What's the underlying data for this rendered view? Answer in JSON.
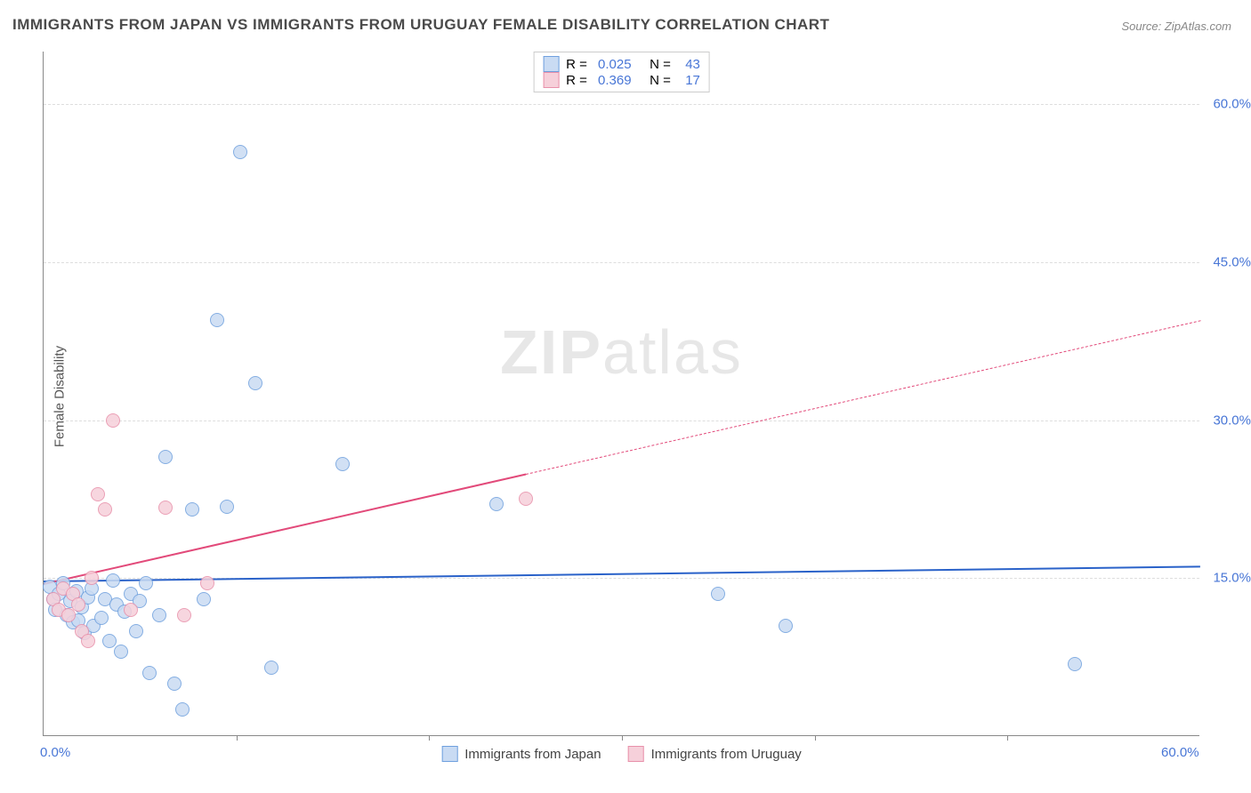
{
  "title": "IMMIGRANTS FROM JAPAN VS IMMIGRANTS FROM URUGUAY FEMALE DISABILITY CORRELATION CHART",
  "source": "Source: ZipAtlas.com",
  "ylabel": "Female Disability",
  "watermark": {
    "bold": "ZIP",
    "rest": "atlas"
  },
  "chart": {
    "type": "scatter",
    "xlim": [
      0,
      60
    ],
    "ylim": [
      0,
      65
    ],
    "x_tick_marks": [
      10,
      20,
      30,
      40,
      50
    ],
    "x_axis_labels": [
      {
        "v": 0,
        "t": "0.0%"
      },
      {
        "v": 60,
        "t": "60.0%"
      }
    ],
    "y_gridlines": [
      {
        "v": 15,
        "t": "15.0%"
      },
      {
        "v": 30,
        "t": "30.0%"
      },
      {
        "v": 45,
        "t": "45.0%"
      },
      {
        "v": 60,
        "t": "60.0%"
      }
    ],
    "background_color": "#ffffff",
    "grid_color": "#dddddd",
    "axis_color": "#888888",
    "marker_radius": 8,
    "marker_stroke_width": 1.2,
    "series": [
      {
        "name": "Immigrants from Japan",
        "fill_color": "#c9dbf3",
        "stroke_color": "#6fa0de",
        "trend_color": "#2a62c9",
        "R": "0.025",
        "N": "43",
        "trend": {
          "x1": 0,
          "y1": 14.8,
          "x2": 60,
          "y2": 16.2,
          "solid_until_x": 60
        },
        "points": [
          [
            0.3,
            14.2
          ],
          [
            0.5,
            13.0
          ],
          [
            0.6,
            12.0
          ],
          [
            0.8,
            13.5
          ],
          [
            1.0,
            14.5
          ],
          [
            1.2,
            11.5
          ],
          [
            1.4,
            12.8
          ],
          [
            1.5,
            10.8
          ],
          [
            1.7,
            13.8
          ],
          [
            1.8,
            11.0
          ],
          [
            2.0,
            12.2
          ],
          [
            2.1,
            9.8
          ],
          [
            2.3,
            13.2
          ],
          [
            2.5,
            14.0
          ],
          [
            2.6,
            10.5
          ],
          [
            3.0,
            11.2
          ],
          [
            3.2,
            13.0
          ],
          [
            3.4,
            9.0
          ],
          [
            3.6,
            14.8
          ],
          [
            3.8,
            12.5
          ],
          [
            4.0,
            8.0
          ],
          [
            4.2,
            11.8
          ],
          [
            4.5,
            13.5
          ],
          [
            4.8,
            10.0
          ],
          [
            5.0,
            12.8
          ],
          [
            5.3,
            14.5
          ],
          [
            5.5,
            6.0
          ],
          [
            6.0,
            11.5
          ],
          [
            6.3,
            26.5
          ],
          [
            6.8,
            5.0
          ],
          [
            7.2,
            2.5
          ],
          [
            7.7,
            21.5
          ],
          [
            8.3,
            13.0
          ],
          [
            9.0,
            39.5
          ],
          [
            9.5,
            21.8
          ],
          [
            10.2,
            55.5
          ],
          [
            11.0,
            33.5
          ],
          [
            11.8,
            6.5
          ],
          [
            15.5,
            25.8
          ],
          [
            23.5,
            22.0
          ],
          [
            35.0,
            13.5
          ],
          [
            38.5,
            10.5
          ],
          [
            53.5,
            6.8
          ]
        ]
      },
      {
        "name": "Immigrants from Uruguay",
        "fill_color": "#f6d0da",
        "stroke_color": "#e890aa",
        "trend_color": "#e24a7a",
        "R": "0.369",
        "N": "17",
        "trend": {
          "x1": 0,
          "y1": 14.5,
          "x2": 60,
          "y2": 39.5,
          "solid_until_x": 25
        },
        "points": [
          [
            0.5,
            13.0
          ],
          [
            0.8,
            12.0
          ],
          [
            1.0,
            14.0
          ],
          [
            1.3,
            11.5
          ],
          [
            1.5,
            13.5
          ],
          [
            1.8,
            12.5
          ],
          [
            2.0,
            10.0
          ],
          [
            2.3,
            9.0
          ],
          [
            2.5,
            15.0
          ],
          [
            2.8,
            23.0
          ],
          [
            3.2,
            21.5
          ],
          [
            3.6,
            30.0
          ],
          [
            4.5,
            12.0
          ],
          [
            6.3,
            21.7
          ],
          [
            7.3,
            11.5
          ],
          [
            8.5,
            14.5
          ],
          [
            25.0,
            22.5
          ]
        ]
      }
    ],
    "legend_top_labels": {
      "R": "R =",
      "N": "N ="
    },
    "legend_bottom": [
      {
        "label": "Immigrants from Japan",
        "series_idx": 0
      },
      {
        "label": "Immigrants from Uruguay",
        "series_idx": 1
      }
    ]
  }
}
